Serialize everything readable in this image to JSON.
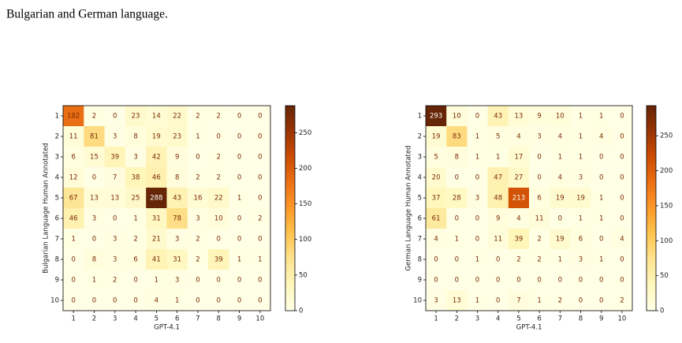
{
  "text": {
    "line": "Bulgarian and German language."
  },
  "chart_data": [
    {
      "type": "heatmap",
      "colormap": "YlOrBr",
      "xlabel": "GPT-4.1",
      "ylabel": "Bulgarian Language Human Annotated",
      "x_categories": [
        1,
        2,
        3,
        4,
        5,
        6,
        7,
        8,
        9,
        10
      ],
      "y_categories": [
        1,
        2,
        3,
        4,
        5,
        6,
        7,
        8,
        9,
        10
      ],
      "values": [
        [
          182,
          2,
          0,
          23,
          14,
          22,
          2,
          2,
          0,
          0
        ],
        [
          11,
          81,
          3,
          8,
          19,
          23,
          1,
          0,
          0,
          0
        ],
        [
          6,
          15,
          39,
          3,
          42,
          9,
          0,
          2,
          0,
          0
        ],
        [
          12,
          0,
          7,
          38,
          46,
          8,
          2,
          2,
          0,
          0
        ],
        [
          67,
          13,
          13,
          25,
          288,
          43,
          16,
          22,
          1,
          0
        ],
        [
          46,
          3,
          0,
          1,
          31,
          78,
          3,
          10,
          0,
          2
        ],
        [
          1,
          0,
          3,
          2,
          21,
          3,
          2,
          0,
          0,
          0
        ],
        [
          0,
          8,
          3,
          6,
          41,
          31,
          2,
          39,
          1,
          1
        ],
        [
          0,
          1,
          2,
          0,
          1,
          3,
          0,
          0,
          0,
          0
        ],
        [
          0,
          0,
          0,
          0,
          4,
          1,
          0,
          0,
          0,
          0
        ]
      ],
      "clim": [
        0,
        288
      ],
      "cticks": [
        0,
        50,
        100,
        150,
        200,
        250
      ]
    },
    {
      "type": "heatmap",
      "colormap": "YlOrBr",
      "xlabel": "GPT-4.1",
      "ylabel": "German Language Human Annotated",
      "x_categories": [
        1,
        2,
        3,
        4,
        5,
        6,
        7,
        8,
        9,
        10
      ],
      "y_categories": [
        1,
        2,
        3,
        4,
        5,
        6,
        7,
        8,
        9,
        10
      ],
      "values": [
        [
          293,
          10,
          0,
          43,
          13,
          9,
          10,
          1,
          1,
          0
        ],
        [
          19,
          83,
          1,
          5,
          4,
          3,
          4,
          1,
          4,
          0
        ],
        [
          5,
          8,
          1,
          1,
          17,
          0,
          1,
          1,
          0,
          0
        ],
        [
          20,
          0,
          0,
          47,
          27,
          0,
          4,
          3,
          0,
          0
        ],
        [
          37,
          28,
          3,
          48,
          213,
          6,
          19,
          19,
          1,
          0
        ],
        [
          61,
          0,
          0,
          9,
          4,
          11,
          0,
          1,
          1,
          0
        ],
        [
          4,
          1,
          0,
          11,
          39,
          2,
          19,
          6,
          0,
          4
        ],
        [
          0,
          0,
          1,
          0,
          2,
          2,
          1,
          3,
          1,
          0
        ],
        [
          0,
          0,
          0,
          0,
          0,
          0,
          0,
          0,
          0,
          0
        ],
        [
          3,
          13,
          1,
          0,
          7,
          1,
          2,
          0,
          0,
          2
        ]
      ],
      "clim": [
        0,
        293
      ],
      "cticks": [
        0,
        50,
        100,
        150,
        200,
        250
      ]
    }
  ]
}
